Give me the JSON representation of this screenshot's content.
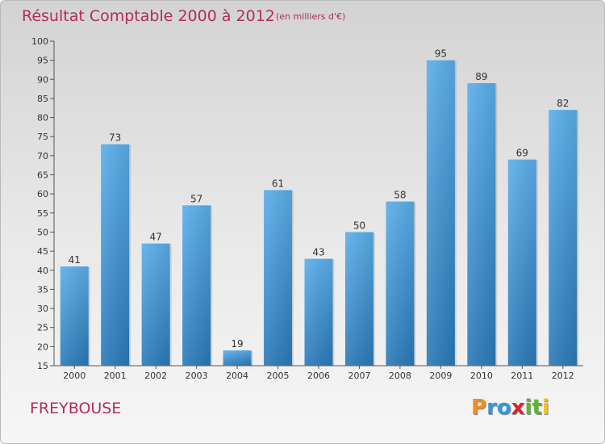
{
  "chart_data": {
    "type": "bar",
    "title": "Résultat Comptable 2000 à 2012",
    "subtitle": "(en milliers d'€)",
    "categories": [
      "2000",
      "2001",
      "2002",
      "2003",
      "2004",
      "2005",
      "2006",
      "2007",
      "2008",
      "2009",
      "2010",
      "2011",
      "2012"
    ],
    "values": [
      41,
      73,
      47,
      57,
      19,
      61,
      43,
      50,
      58,
      95,
      89,
      69,
      82
    ],
    "ylim": [
      15,
      100
    ],
    "yticks": [
      15,
      20,
      25,
      30,
      35,
      40,
      45,
      50,
      55,
      60,
      65,
      70,
      75,
      80,
      85,
      90,
      95,
      100
    ],
    "xlabel": "",
    "ylabel": "",
    "grid": false,
    "bar_color": "#3a8fd6"
  },
  "location": "FREYBOUSE",
  "brand": {
    "name": "Proxiti",
    "letters": [
      "P",
      "r",
      "o",
      "x",
      "i",
      "t",
      "i"
    ],
    "colors": [
      "#f28c1e",
      "#2e9ad8",
      "#2e9ad8",
      "#d7262e",
      "#5ab82f",
      "#5ab82f",
      "#f2c21e"
    ]
  },
  "colors": {
    "title": "#b52a5b",
    "axis": "#555555"
  }
}
